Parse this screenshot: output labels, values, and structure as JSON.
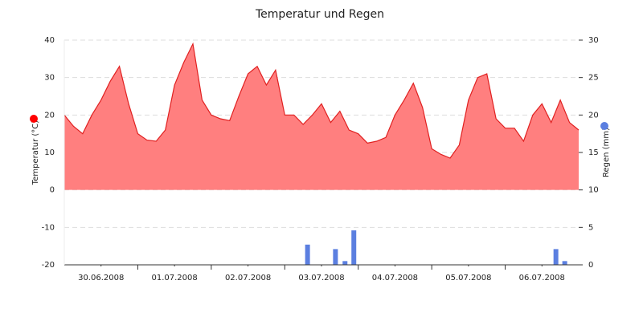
{
  "chart_data": {
    "type": "combo",
    "title": "Temperatur und Regen",
    "ylabel": "Temperatur (°C)",
    "y2label": "Regen (mm)",
    "xlim": [
      0,
      7
    ],
    "xticks": [
      {
        "value": 0.5,
        "label": "30.06.2008"
      },
      {
        "value": 1.5,
        "label": "01.07.2008"
      },
      {
        "value": 2.5,
        "label": "02.07.2008"
      },
      {
        "value": 3.5,
        "label": "03.07.2008"
      },
      {
        "value": 4.5,
        "label": "04.07.2008"
      },
      {
        "value": 5.5,
        "label": "05.07.2008"
      },
      {
        "value": 6.5,
        "label": "06.07.2008"
      }
    ],
    "ylim": [
      -20,
      40
    ],
    "yticks": [
      -20,
      -10,
      0,
      10,
      20,
      30,
      40
    ],
    "y2lim": [
      0,
      30
    ],
    "y2ticks": [
      0,
      5,
      10,
      15,
      20,
      25,
      30
    ],
    "grid": true,
    "series": [
      {
        "type": "area",
        "color": "#ff7f7f",
        "line_color": "#e02020",
        "x": [
          0,
          0.125,
          0.25,
          0.375,
          0.5,
          0.625,
          0.75,
          0.875,
          1,
          1.125,
          1.25,
          1.375,
          1.5,
          1.625,
          1.75,
          1.875,
          2,
          2.125,
          2.25,
          2.375,
          2.5,
          2.625,
          2.75,
          2.875,
          3,
          3.125,
          3.25,
          3.375,
          3.5,
          3.625,
          3.75,
          3.875,
          4,
          4.125,
          4.25,
          4.375,
          4.5,
          4.625,
          4.75,
          4.875,
          5,
          5.125,
          5.25,
          5.375,
          5.5,
          5.625,
          5.75,
          5.875,
          6,
          6.125,
          6.25,
          6.375,
          6.5,
          6.625,
          6.75,
          6.875,
          7
        ],
        "values": [
          20,
          17,
          15,
          20,
          24,
          29,
          33,
          23,
          15,
          13.3,
          13,
          16,
          28,
          34,
          39,
          24,
          20,
          19,
          18.5,
          25,
          31,
          33,
          28,
          32,
          20,
          20,
          17.5,
          20,
          23,
          18,
          21,
          16,
          15,
          12.5,
          13,
          14,
          20,
          24,
          28.5,
          22,
          11,
          9.5,
          8.5,
          12,
          24,
          30,
          31,
          19,
          16.5,
          16.5,
          13,
          20,
          23,
          18,
          24,
          18,
          16
        ]
      },
      {
        "type": "bar",
        "axis": "y2",
        "color": "#5b7fe0",
        "x": [
          3.31,
          3.69,
          3.82,
          3.94,
          6.69,
          6.81
        ],
        "values": [
          2.7,
          2.1,
          0.5,
          4.6,
          2.1,
          0.5
        ]
      }
    ]
  }
}
